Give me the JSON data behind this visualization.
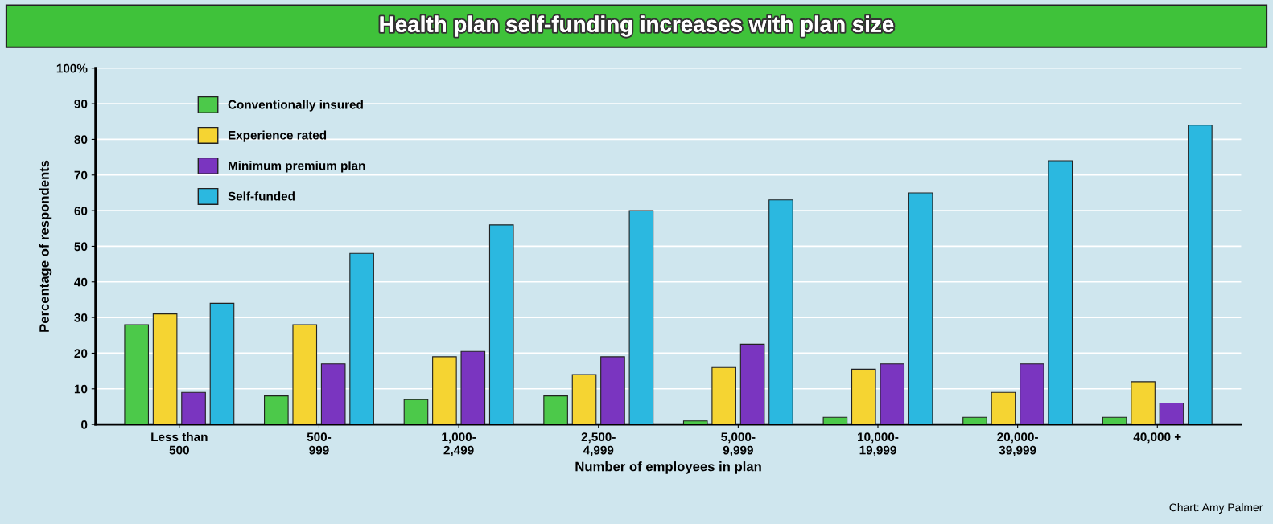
{
  "chart_data": {
    "type": "bar",
    "title": "Health plan self-funding increases with plan size",
    "xlabel": "Number of employees in plan",
    "ylabel": "Percentage of respondents",
    "categories": [
      "Less than\n500",
      "500-\n999",
      "1,000-\n2,499",
      "2,500-\n4,999",
      "5,000-\n9,999",
      "10,000-\n19,999",
      "20,000-\n39,999",
      "40,000 +"
    ],
    "series": [
      {
        "name": "Conventionally insured",
        "color": "#4cc94a",
        "values": [
          28,
          8,
          7,
          8,
          1,
          2,
          2,
          2
        ]
      },
      {
        "name": "Experience rated",
        "color": "#f5d432",
        "values": [
          31,
          28,
          19,
          14,
          16,
          15.5,
          9,
          12
        ]
      },
      {
        "name": "Minimum premium plan",
        "color": "#7a35c0",
        "values": [
          9,
          17,
          20.5,
          19,
          22.5,
          17,
          17,
          6
        ]
      },
      {
        "name": "Self-funded",
        "color": "#2bb8e0",
        "values": [
          34,
          48,
          56,
          60,
          63,
          65,
          74,
          84
        ]
      }
    ],
    "ylim": [
      0,
      100
    ],
    "yticks": [
      0,
      10,
      20,
      30,
      40,
      50,
      60,
      70,
      80,
      90,
      {
        "value": 100,
        "label": "100%"
      }
    ],
    "grid": "y",
    "legend": "top left",
    "annotations": [
      "Chart: Amy Palmer"
    ]
  }
}
